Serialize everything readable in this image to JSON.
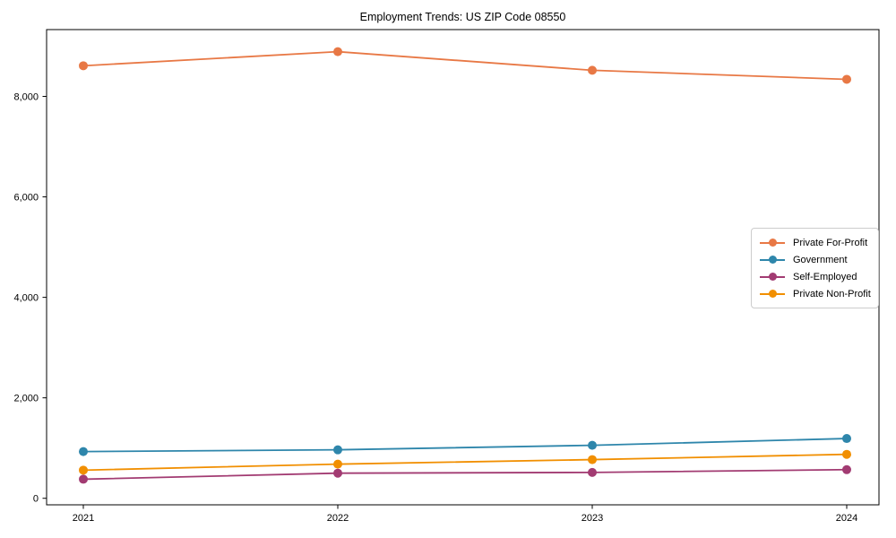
{
  "figure": {
    "title": "Employment Trends: US ZIP Code 08550"
  },
  "chart_data": {
    "type": "line",
    "title": "Employment Trends: US ZIP Code 08550",
    "categories": [
      "2021",
      "2022",
      "2023",
      "2024"
    ],
    "series": [
      {
        "name": "Private For-Profit",
        "color": "#E87845",
        "values": [
          8610,
          8890,
          8520,
          8340
        ]
      },
      {
        "name": "Government",
        "color": "#2E86AB",
        "values": [
          930,
          965,
          1055,
          1190
        ]
      },
      {
        "name": "Self-Employed",
        "color": "#A23B72",
        "values": [
          380,
          500,
          515,
          570
        ]
      },
      {
        "name": "Private Non-Profit",
        "color": "#F18F01",
        "values": [
          560,
          680,
          770,
          875
        ]
      }
    ],
    "xlabel": "",
    "ylabel": "",
    "ylim": [
      -130,
      9330
    ],
    "yticks": [
      {
        "value": 0,
        "label": "0"
      },
      {
        "value": 2000,
        "label": "2,000"
      },
      {
        "value": 4000,
        "label": "4,000"
      },
      {
        "value": 6000,
        "label": "6,000"
      },
      {
        "value": 8000,
        "label": "8,000"
      }
    ],
    "grid": false,
    "legend_position": "right-middle",
    "frame_color": "#000000"
  }
}
